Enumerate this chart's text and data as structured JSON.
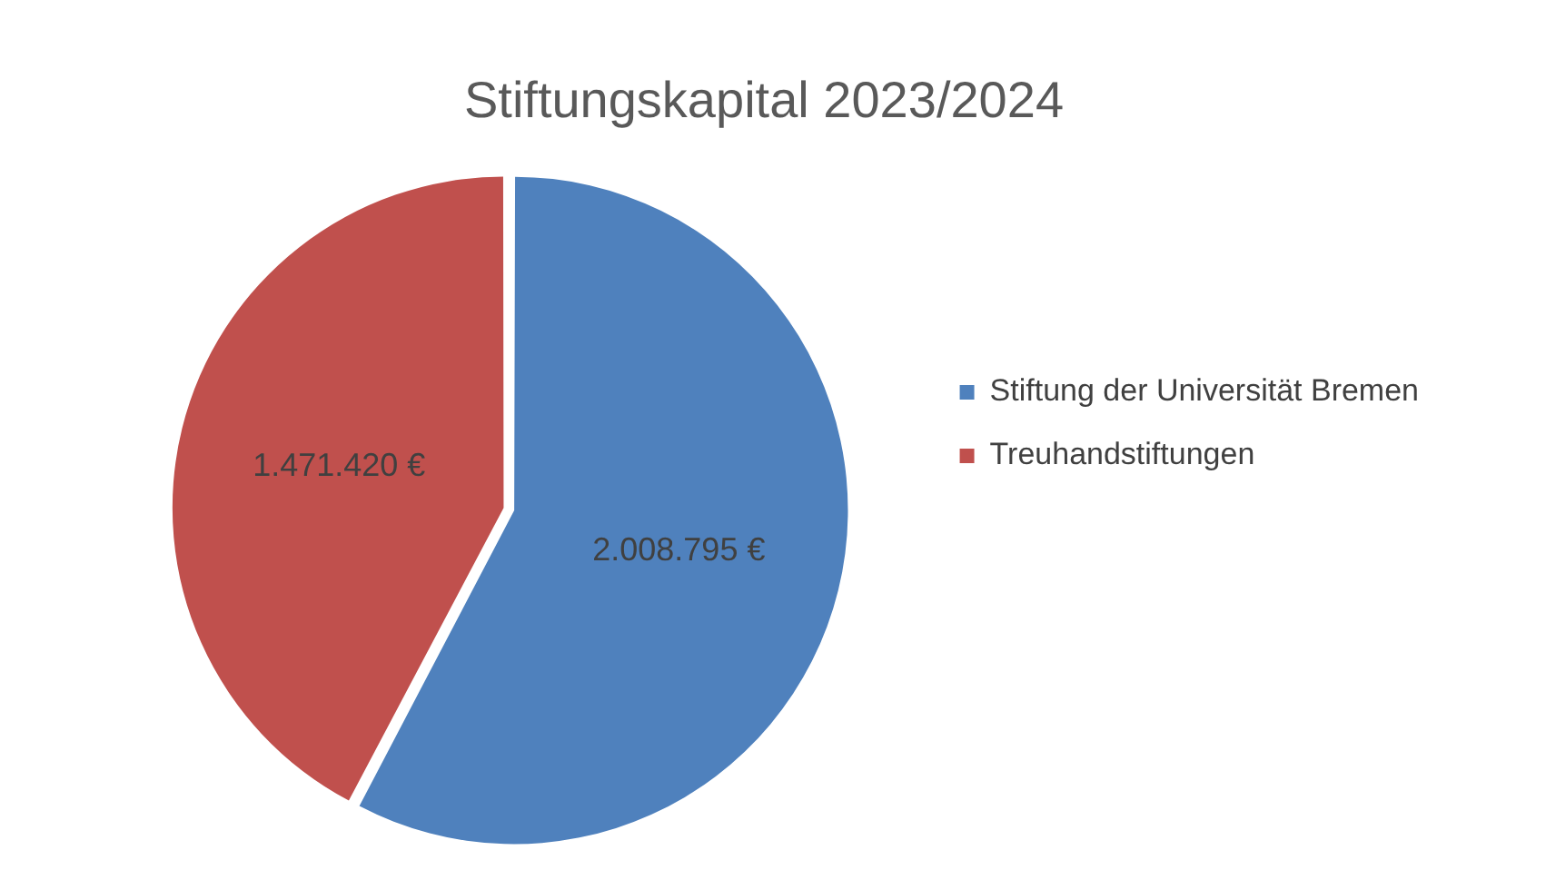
{
  "chart_data": {
    "type": "pie",
    "title": "Stiftungskapital 2023/2024",
    "categories": [
      "Stiftung der Universität Bremen",
      "Treuhandstiftungen"
    ],
    "values": [
      2008795,
      1471420
    ],
    "colors": [
      "#4f81bd",
      "#c0504d"
    ],
    "value_labels": [
      "2.008.795 €",
      "1.471.420 €"
    ],
    "legend": "right"
  }
}
